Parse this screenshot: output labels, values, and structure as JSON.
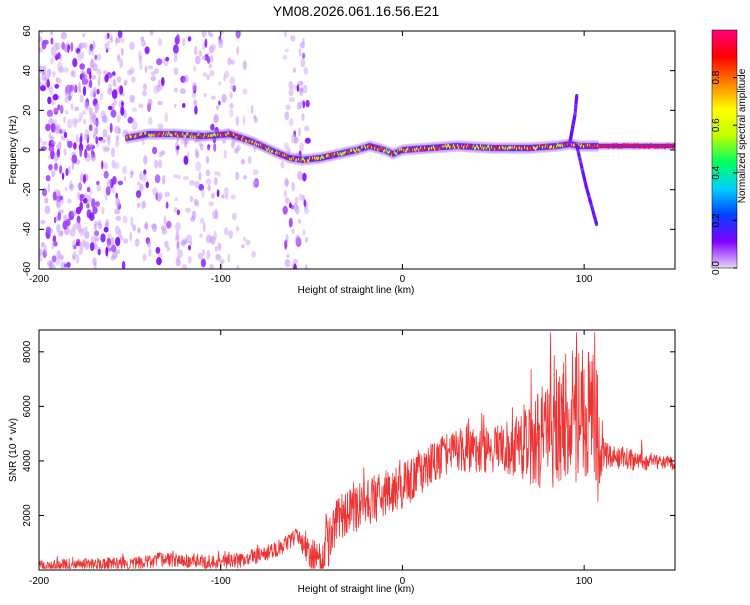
{
  "figure": {
    "title": "YM08.2026.061.16.56.E21"
  },
  "chart_data": [
    {
      "type": "heatmap",
      "xlabel": "Height of straight line (km)",
      "ylabel": "Frequency (Hz)",
      "xlim": [
        -200,
        150
      ],
      "ylim": [
        -60,
        60
      ],
      "x_ticks": [
        -200,
        -100,
        0,
        100
      ],
      "y_ticks": [
        -60,
        -40,
        -20,
        0,
        20,
        40,
        60
      ],
      "colorbar": {
        "label": "Normalized spectral amplitude",
        "range": [
          0,
          1
        ],
        "ticks": [
          0.0,
          0.2,
          0.4,
          0.6,
          0.8
        ],
        "tick_labels": [
          "0.0",
          "0.2",
          "0.4",
          "0.6",
          "0.8"
        ],
        "colormap": [
          "#e8d8f8",
          "#8000ff",
          "#0040ff",
          "#00d0ff",
          "#00ff60",
          "#c0ff00",
          "#ffff00",
          "#ff8000",
          "#ff0000",
          "#ff0080"
        ]
      },
      "ridge_centerline": {
        "x": [
          -152,
          -140,
          -125,
          -110,
          -95,
          -82,
          -70,
          -62,
          -55,
          -45,
          -35,
          -25,
          -18,
          -10,
          -5,
          0,
          15,
          30,
          50,
          70,
          85,
          92,
          98,
          105,
          120,
          150
        ],
        "y": [
          6,
          8,
          8,
          7,
          8,
          4,
          -1,
          -4,
          -5,
          -4,
          -2,
          0,
          2,
          0,
          -2,
          0,
          1,
          2,
          1,
          1,
          2,
          3,
          2,
          2,
          2,
          2
        ]
      },
      "branches": [
        {
          "x": [
            92,
            95,
            96
          ],
          "y": [
            3,
            18,
            28
          ]
        },
        {
          "x": [
            96,
            101,
            107
          ],
          "y": [
            2,
            -18,
            -38
          ]
        }
      ]
    },
    {
      "type": "line",
      "xlabel": "Height of straight line (km)",
      "ylabel": "SNR (10 * v/v)",
      "xlim": [
        -200,
        150
      ],
      "ylim": [
        0,
        8800
      ],
      "x_ticks": [
        -200,
        -100,
        0,
        100
      ],
      "y_ticks": [
        2000,
        4000,
        6000,
        8000
      ],
      "series": [
        {
          "name": "SNR",
          "color": "#ee3333",
          "envelope_x": [
            -200,
            -150,
            -130,
            -110,
            -90,
            -75,
            -65,
            -58,
            -52,
            -45,
            -40,
            -35,
            -25,
            -15,
            -5,
            5,
            15,
            25,
            35,
            45,
            55,
            65,
            75,
            80,
            85,
            90,
            95,
            100,
            105,
            110,
            115,
            130,
            150
          ],
          "envelope_y": [
            150,
            250,
            400,
            250,
            350,
            600,
            900,
            1300,
            600,
            250,
            1100,
            2000,
            2300,
            2600,
            2900,
            3300,
            3800,
            4300,
            4400,
            4400,
            4400,
            4600,
            4800,
            5000,
            5200,
            5400,
            5600,
            5800,
            5600,
            4200,
            4200,
            4000,
            3900
          ],
          "amplitude_x": [
            -200,
            -60,
            -40,
            -20,
            20,
            55,
            75,
            90,
            100,
            108,
            111,
            150
          ],
          "amplitude_y": [
            220,
            300,
            900,
            900,
            800,
            900,
            1800,
            2600,
            3000,
            2600,
            500,
            250
          ]
        }
      ]
    }
  ]
}
